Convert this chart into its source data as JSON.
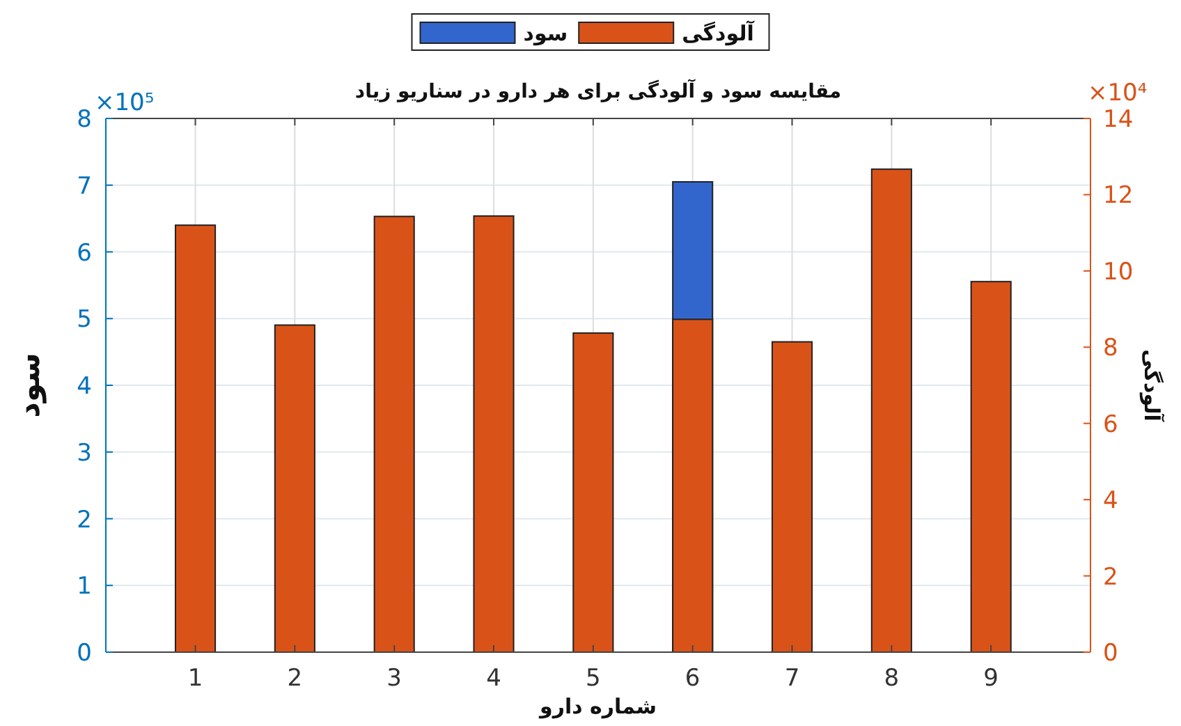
{
  "chart_data": {
    "type": "bar",
    "title": "مقایسه سود و آلودگی برای هر دارو در سناریو زیاد",
    "xlabel": "شماره دارو",
    "ylabel": "سود",
    "y2label": "آلودگی",
    "categories": [
      "1",
      "2",
      "3",
      "4",
      "5",
      "6",
      "7",
      "8",
      "9"
    ],
    "series": [
      {
        "name": "سود",
        "color": "#3366cc",
        "values": [
          null,
          null,
          null,
          null,
          null,
          7.05,
          null,
          null,
          null
        ]
      },
      {
        "name": "آلودگی",
        "color": "#d95319",
        "axis": "y2",
        "values": [
          11.2,
          8.58,
          11.43,
          11.44,
          8.37,
          8.73,
          8.14,
          12.67,
          9.72
        ]
      }
    ],
    "ylim": [
      0,
      8
    ],
    "yticks": [
      0,
      1,
      2,
      3,
      4,
      5,
      6,
      7,
      8
    ],
    "y2lim": [
      0,
      14
    ],
    "y2ticks": [
      0,
      2,
      4,
      6,
      8,
      10,
      12,
      14
    ],
    "annotations": [
      "×10⁵",
      "×10⁴"
    ],
    "grid": true,
    "legend": "top"
  }
}
